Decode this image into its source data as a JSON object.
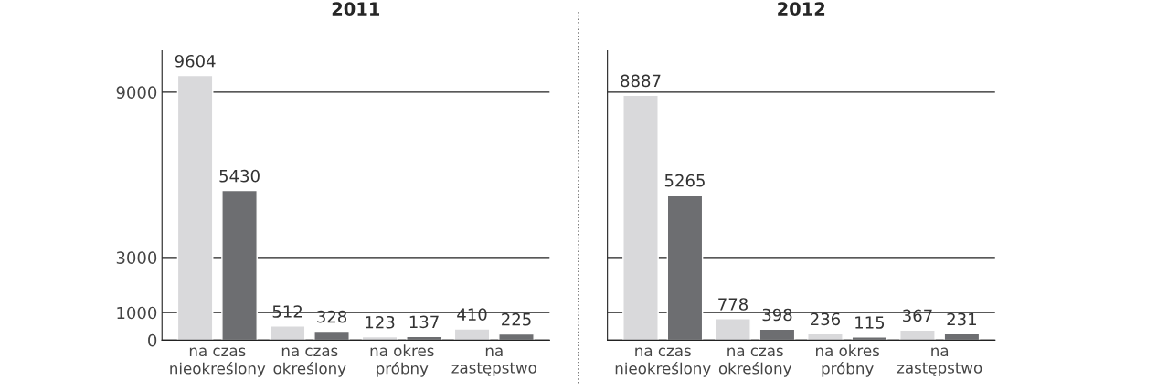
{
  "chart_data": [
    {
      "type": "bar",
      "title": "2011",
      "categories": [
        "na czas\nnieokreślony",
        "na czas\nokreślony",
        "na okres\npróbny",
        "na\nzastępstwo"
      ],
      "series": [
        {
          "color": "#d9d9db",
          "values": [
            9604,
            512,
            123,
            410
          ]
        },
        {
          "color": "#6d6e71",
          "values": [
            5430,
            328,
            137,
            225
          ]
        }
      ],
      "ylim": [
        0,
        10500
      ],
      "yticks": [
        0,
        1000,
        3000,
        9000
      ],
      "grid": "y",
      "data_labels": true
    },
    {
      "type": "bar",
      "title": "2012",
      "categories": [
        "na czas\nnieokreślony",
        "na czas\nokreślony",
        "na okres\npróbny",
        "na\nzastępstwo"
      ],
      "series": [
        {
          "color": "#d9d9db",
          "values": [
            8887,
            778,
            236,
            367
          ]
        },
        {
          "color": "#6d6e71",
          "values": [
            5265,
            398,
            115,
            231
          ]
        }
      ],
      "ylim": [
        0,
        10500
      ],
      "yticks": [
        0,
        1000,
        3000,
        9000
      ],
      "grid": "y",
      "data_labels": true,
      "tick_labels": "x"
    }
  ]
}
